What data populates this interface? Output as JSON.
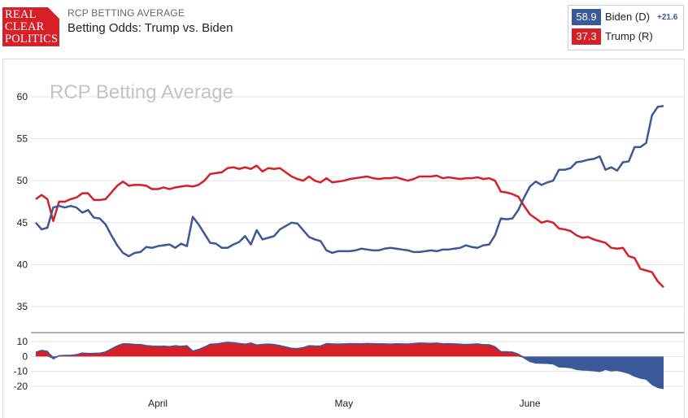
{
  "header": {
    "logo_line1": "REAL",
    "logo_line2": "CLEAR",
    "logo_line3": "POLITICS",
    "subtitle": "RCP BETTING AVERAGE",
    "title": "Betting Odds: Trump vs. Biden"
  },
  "legend": {
    "biden": {
      "value": "58.9",
      "label": "Biden (D)",
      "spread": "+21.6",
      "color": "#3b5998"
    },
    "trump": {
      "value": "37.3",
      "label": "Trump (R)",
      "spread": "",
      "color": "#d61f26"
    }
  },
  "chart_data": {
    "type": "line",
    "title": "RCP Betting Average",
    "xlabel": "",
    "ylabel": "",
    "ylim": [
      33,
      63
    ],
    "yticks": [
      60,
      55,
      50,
      45,
      40,
      35
    ],
    "spread_ylim": [
      -23,
      12
    ],
    "spread_yticks": [
      10,
      0,
      -10,
      -20
    ],
    "x_labels": [
      {
        "label": "April",
        "index": 21
      },
      {
        "label": "May",
        "index": 53
      },
      {
        "label": "June",
        "index": 85
      }
    ],
    "grid": true,
    "series": [
      {
        "name": "Biden (D)",
        "color": "#3b5998",
        "values": [
          45.0,
          44.2,
          44.4,
          46.8,
          47.0,
          46.8,
          47.0,
          46.8,
          46.2,
          46.5,
          45.6,
          45.5,
          44.8,
          43.5,
          42.3,
          41.4,
          41.0,
          41.4,
          41.5,
          42.1,
          42.0,
          42.2,
          42.3,
          42.4,
          42.0,
          42.5,
          42.2,
          45.7,
          44.8,
          43.7,
          42.6,
          42.5,
          42.0,
          42.0,
          42.4,
          42.7,
          43.4,
          42.4,
          44.1,
          43.0,
          43.2,
          43.4,
          44.2,
          44.6,
          45.0,
          44.9,
          44.1,
          43.3,
          43.0,
          42.8,
          41.7,
          41.4,
          41.6,
          41.6,
          41.6,
          41.7,
          41.9,
          41.8,
          41.7,
          41.7,
          41.9,
          42.0,
          41.9,
          41.8,
          41.7,
          41.5,
          41.5,
          41.6,
          41.7,
          41.6,
          41.8,
          41.8,
          41.9,
          42.0,
          42.3,
          42.1,
          42.0,
          42.3,
          42.4,
          43.5,
          45.5,
          45.4,
          45.5,
          46.5,
          48.0,
          49.3,
          49.9,
          49.5,
          49.8,
          50.0,
          51.3,
          51.3,
          51.5,
          52.2,
          52.3,
          52.5,
          52.6,
          52.9,
          51.3,
          51.6,
          51.2,
          52.2,
          52.3,
          54.0,
          54.0,
          54.5,
          57.8,
          58.8,
          58.9
        ]
      },
      {
        "name": "Trump (R)",
        "color": "#d61f26",
        "values": [
          47.8,
          48.3,
          47.8,
          45.2,
          47.5,
          47.5,
          47.8,
          48.0,
          48.5,
          48.5,
          47.7,
          47.7,
          47.8,
          48.6,
          49.4,
          49.9,
          49.4,
          49.5,
          49.5,
          49.4,
          49.0,
          49.0,
          49.2,
          49.0,
          49.2,
          49.3,
          49.4,
          49.3,
          49.5,
          50.0,
          50.8,
          50.9,
          51.0,
          51.5,
          51.6,
          51.4,
          51.6,
          51.4,
          51.8,
          51.1,
          51.5,
          51.4,
          51.5,
          51.0,
          50.5,
          50.2,
          50.0,
          50.5,
          50.0,
          49.8,
          50.3,
          49.8,
          49.9,
          50.0,
          50.2,
          50.3,
          50.4,
          50.5,
          50.3,
          50.2,
          50.3,
          50.3,
          50.4,
          50.2,
          50.0,
          50.2,
          50.5,
          50.5,
          50.5,
          50.6,
          50.3,
          50.4,
          50.3,
          50.2,
          50.3,
          50.3,
          50.4,
          50.2,
          50.3,
          50.0,
          48.7,
          48.6,
          48.4,
          48.1,
          47.0,
          46.0,
          45.5,
          45.0,
          45.2,
          45.0,
          44.3,
          44.2,
          44.0,
          43.5,
          43.2,
          43.3,
          43.0,
          42.8,
          42.6,
          42.0,
          41.9,
          42.0,
          41.0,
          40.8,
          39.5,
          39.3,
          39.1,
          38.0,
          37.3
        ]
      }
    ],
    "spread_series": {
      "name": "Spread (Biden - Trump)",
      "positive_color": "#d61f26",
      "negative_color": "#3b5998"
    }
  }
}
